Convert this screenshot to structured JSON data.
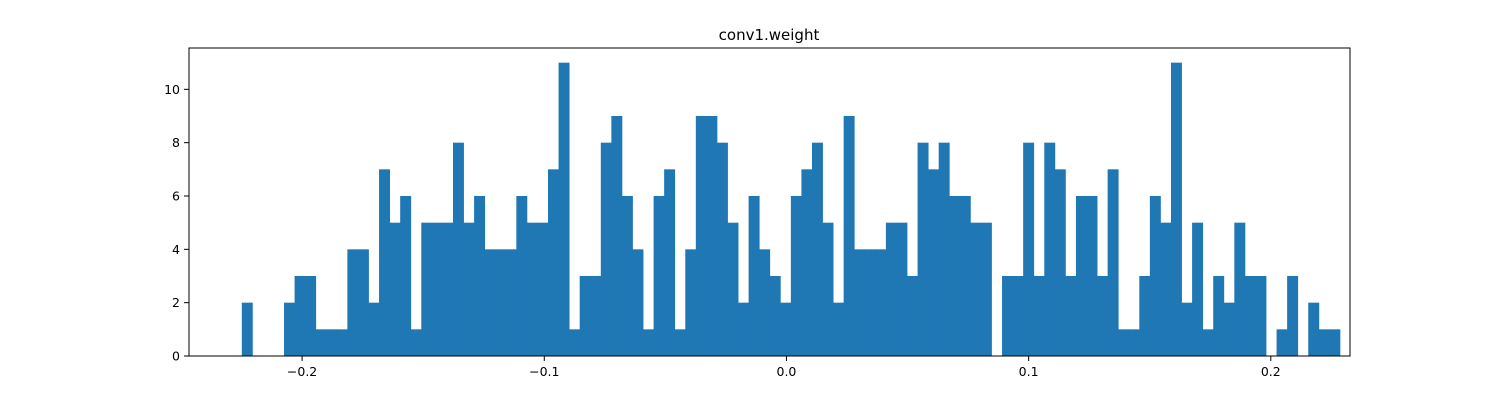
{
  "chart_data": {
    "type": "bar",
    "title": "conv1.weight",
    "xlabel": "",
    "ylabel": "",
    "xlim": [
      -0.2467,
      0.2327
    ],
    "ylim": [
      0,
      11.55
    ],
    "xticks": [
      -0.2,
      -0.1,
      0.0,
      0.1,
      0.2
    ],
    "xtick_labels": [
      "−0.2",
      "−0.1",
      "0.0",
      "0.1",
      "0.2"
    ],
    "yticks": [
      0,
      2,
      4,
      6,
      8,
      10
    ],
    "ytick_labels": [
      "0",
      "2",
      "4",
      "6",
      "8",
      "10"
    ],
    "bin_start": -0.2249,
    "bin_width": 0.00436,
    "values": [
      2,
      0,
      0,
      0,
      2,
      3,
      3,
      1,
      1,
      1,
      4,
      4,
      2,
      7,
      5,
      6,
      1,
      5,
      5,
      5,
      8,
      5,
      6,
      4,
      4,
      4,
      6,
      5,
      5,
      7,
      11,
      1,
      3,
      3,
      8,
      9,
      6,
      4,
      1,
      6,
      7,
      1,
      4,
      9,
      9,
      8,
      5,
      2,
      6,
      4,
      3,
      2,
      6,
      7,
      8,
      5,
      2,
      9,
      4,
      4,
      4,
      5,
      5,
      3,
      8,
      7,
      8,
      6,
      6,
      5,
      5,
      0,
      3,
      3,
      8,
      3,
      8,
      7,
      3,
      6,
      6,
      3,
      7,
      1,
      1,
      3,
      6,
      5,
      11,
      2,
      5,
      1,
      3,
      2,
      5,
      3,
      3,
      0,
      1,
      3,
      0,
      2,
      1,
      1
    ],
    "grid": false,
    "legend": "none",
    "colors": {
      "bar": "#1f77b4",
      "axes": "#000000",
      "background": "#ffffff"
    }
  }
}
